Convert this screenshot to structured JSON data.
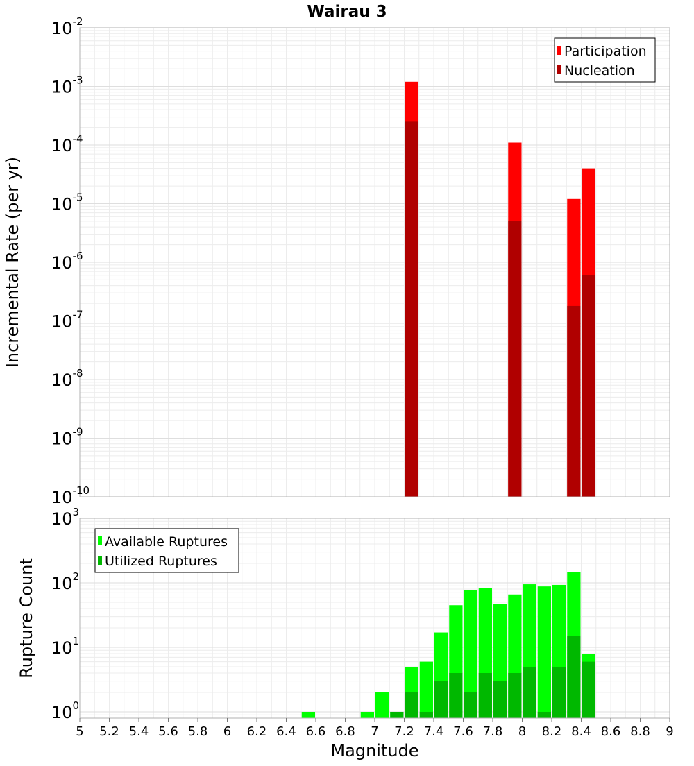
{
  "chart_data": [
    {
      "type": "bar",
      "title": "Wairau 3",
      "xlabel": "",
      "ylabel": "Incremental Rate (per yr)",
      "yscale": "log",
      "ylim": [
        1e-10,
        0.01
      ],
      "xlim": [
        5,
        9
      ],
      "bar_width": 0.1,
      "y_tick_labels": [
        {
          "base": "10",
          "exp": "-10"
        },
        {
          "base": "10",
          "exp": "-9"
        },
        {
          "base": "10",
          "exp": "-8"
        },
        {
          "base": "10",
          "exp": "-7"
        },
        {
          "base": "10",
          "exp": "-6"
        },
        {
          "base": "10",
          "exp": "-5"
        },
        {
          "base": "10",
          "exp": "-4"
        },
        {
          "base": "10",
          "exp": "-3"
        },
        {
          "base": "10",
          "exp": "-2"
        }
      ],
      "grid": true,
      "legend_position": "top-right",
      "series": [
        {
          "name": "Participation",
          "color": "#ff0000",
          "x": [
            7.25,
            7.95,
            8.35,
            8.45
          ],
          "values": [
            0.0012,
            0.00011,
            1.2e-05,
            4e-05
          ]
        },
        {
          "name": "Nucleation",
          "color": "#b00000",
          "x": [
            7.25,
            7.95,
            8.35,
            8.45
          ],
          "values": [
            0.00025,
            5e-06,
            1.8e-07,
            6e-07
          ]
        }
      ]
    },
    {
      "type": "bar",
      "title": "",
      "xlabel": "Magnitude",
      "ylabel": "Rupture Count",
      "yscale": "log",
      "ylim": [
        0.8,
        1000
      ],
      "xlim": [
        5,
        9
      ],
      "bar_width": 0.1,
      "x_ticks": [
        "5",
        "5.2",
        "5.4",
        "5.6",
        "5.8",
        "6",
        "6.2",
        "6.4",
        "6.6",
        "6.8",
        "7",
        "7.2",
        "7.4",
        "7.6",
        "7.8",
        "8",
        "8.2",
        "8.4",
        "8.6",
        "8.8",
        "9"
      ],
      "y_tick_labels": [
        {
          "base": "10",
          "exp": "0"
        },
        {
          "base": "10",
          "exp": "1"
        },
        {
          "base": "10",
          "exp": "2"
        },
        {
          "base": "10",
          "exp": "3"
        }
      ],
      "grid": true,
      "legend_position": "top-left",
      "series": [
        {
          "name": "Available Ruptures",
          "color": "#00ff00",
          "x": [
            6.55,
            6.95,
            7.05,
            7.15,
            7.25,
            7.35,
            7.45,
            7.55,
            7.65,
            7.75,
            7.85,
            7.95,
            8.05,
            8.15,
            8.25,
            8.35,
            8.45
          ],
          "values": [
            1,
            1,
            2,
            1,
            5,
            6,
            17,
            45,
            78,
            83,
            47,
            66,
            95,
            88,
            93,
            145,
            8
          ]
        },
        {
          "name": "Utilized Ruptures",
          "color": "#00b800",
          "x": [
            7.15,
            7.25,
            7.35,
            7.45,
            7.55,
            7.65,
            7.75,
            7.85,
            7.95,
            8.05,
            8.15,
            8.25,
            8.35,
            8.45
          ],
          "values": [
            1,
            2,
            1,
            3,
            4,
            2,
            4,
            3,
            4,
            5,
            1,
            5,
            15,
            6
          ]
        }
      ]
    }
  ]
}
